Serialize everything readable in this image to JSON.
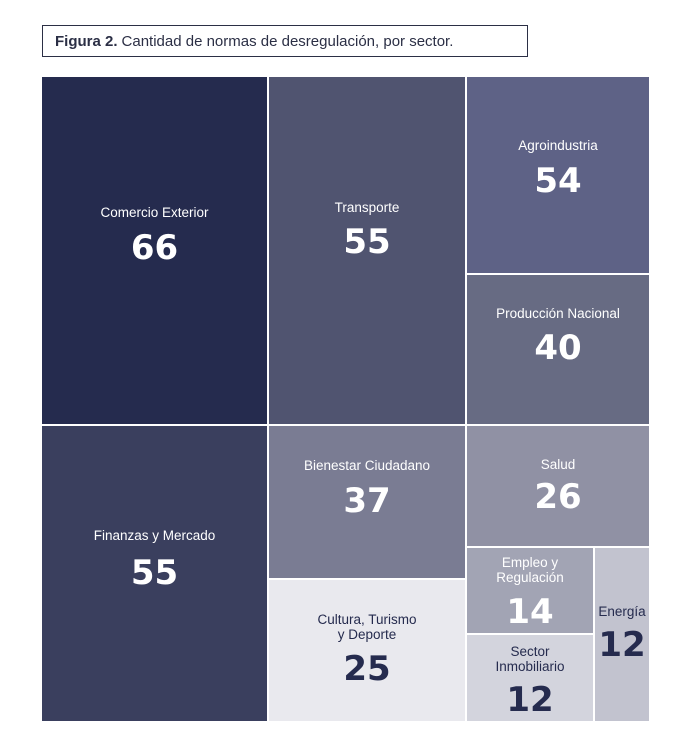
{
  "caption": {
    "label": "Figura 2.",
    "text": "Cantidad de normas de desregulación, por sector."
  },
  "chart_data": {
    "type": "treemap",
    "title": "Figura 2. Cantidad de normas de desregulación, por sector.",
    "unit": "normas",
    "data": [
      {
        "name": "Comercio Exterior",
        "value": 66,
        "color": "#252b4e",
        "text_color": "#ffffff"
      },
      {
        "name": "Finanzas y Mercado",
        "value": 55,
        "color": "#3a3f5e",
        "text_color": "#ffffff"
      },
      {
        "name": "Transporte",
        "value": 55,
        "color": "#505470",
        "text_color": "#ffffff"
      },
      {
        "name": "Bienestar Ciudadano",
        "value": 37,
        "color": "#7a7c93",
        "text_color": "#ffffff"
      },
      {
        "name": "Cultura, Turismo\ny Deporte",
        "value": 25,
        "color": "#e9e9ee",
        "text_color": "#252b4e"
      },
      {
        "name": "Agroindustria",
        "value": 54,
        "color": "#5e6286",
        "text_color": "#ffffff"
      },
      {
        "name": "Producción Nacional",
        "value": 40,
        "color": "#676b83",
        "text_color": "#ffffff"
      },
      {
        "name": "Salud",
        "value": 26,
        "color": "#9091a4",
        "text_color": "#ffffff"
      },
      {
        "name": "Empleo y\nRegulación",
        "value": 14,
        "color": "#a2a4b4",
        "text_color": "#ffffff"
      },
      {
        "name": "Sector\nInmobiliario",
        "value": 12,
        "color": "#d3d4dd",
        "text_color": "#252b4e"
      },
      {
        "name": "Energía",
        "value": 12,
        "color": "#c2c3cf",
        "text_color": "#252b4e"
      }
    ]
  }
}
